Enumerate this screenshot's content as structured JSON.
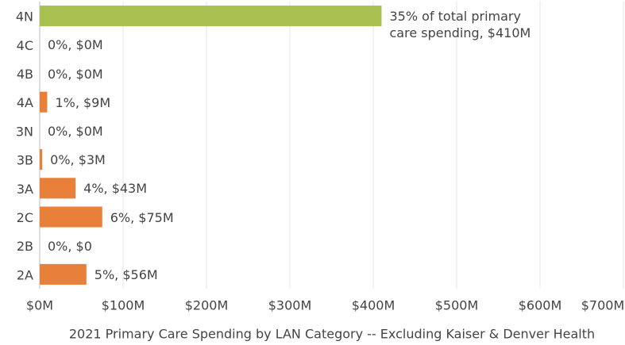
{
  "chart_data": {
    "type": "barh",
    "categories": [
      "4N",
      "4C",
      "4B",
      "4A",
      "3N",
      "3B",
      "3A",
      "2C",
      "2B",
      "2A"
    ],
    "values": [
      410,
      0,
      0,
      9,
      0,
      3,
      43,
      75,
      0,
      56
    ],
    "value_labels": [
      "35% of total primary care spending, $410M",
      "0%, $0M",
      "0%, $0M",
      "1%, $9M",
      "0%, $0M",
      "0%, $3M",
      "4%, $43M",
      "6%, $75M",
      "0%, $0",
      "5%, $56M"
    ],
    "colors": [
      "#a9c150",
      "#e8803a",
      "#e8803a",
      "#e8803a",
      "#e8803a",
      "#e8803a",
      "#e8803a",
      "#e8803a",
      "#e8803a",
      "#e8803a"
    ],
    "xlim": [
      0,
      700
    ],
    "xticks": [
      {
        "value": 0,
        "label": "$0M"
      },
      {
        "value": 100,
        "label": "$100M"
      },
      {
        "value": 200,
        "label": "$200M"
      },
      {
        "value": 300,
        "label": "$300M"
      },
      {
        "value": 400,
        "label": "$400M"
      },
      {
        "value": 500,
        "label": "$500M"
      },
      {
        "value": 600,
        "label": "$600M"
      },
      {
        "value": 700,
        "label": "$700M"
      }
    ],
    "xlabel": "2021 Primary Care Spending by LAN Category -- Excluding Kaiser & Denver Health",
    "grid": true
  }
}
